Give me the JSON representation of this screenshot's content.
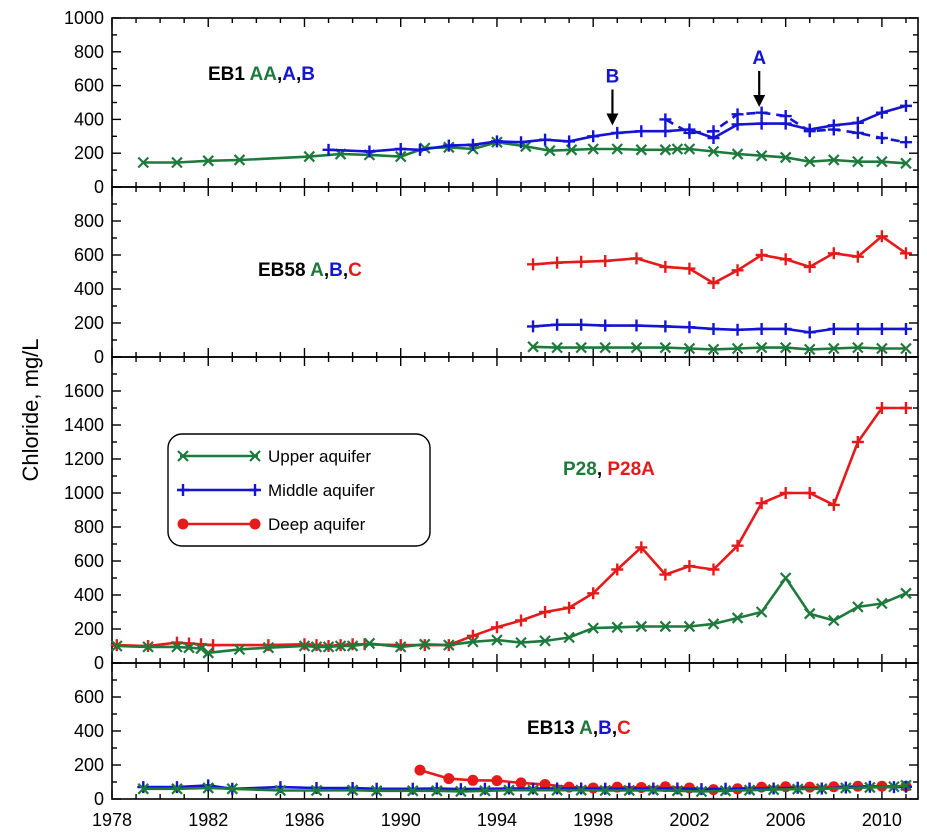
{
  "chart_data": {
    "type": "line",
    "ylabel": "Chloride, mg/L",
    "x_ticks": [
      1978,
      1982,
      1986,
      1990,
      1994,
      1998,
      2002,
      2006,
      2010
    ],
    "xlim": [
      1978,
      2011.5
    ],
    "colors": {
      "upper": "#1e7a3c",
      "middle": "#1414d2",
      "deep": "#e51a1a",
      "label": "#000000"
    },
    "legend": {
      "placement": "middle-left of third panel",
      "entries": [
        {
          "key": "upper",
          "label": "Upper aquifer",
          "marker": "x"
        },
        {
          "key": "middle",
          "label": "Middle aquifer",
          "marker": "plus"
        },
        {
          "key": "deep",
          "label": "Deep aquifer",
          "marker": "dot"
        }
      ]
    },
    "panels": [
      {
        "id": "EB1",
        "ylim": [
          0,
          1000
        ],
        "yticks": [
          0,
          200,
          400,
          600,
          800,
          1000
        ],
        "label_parts": [
          {
            "text": "EB1 ",
            "color": "label"
          },
          {
            "text": "AA",
            "color": "upper"
          },
          {
            "text": ",",
            "color": "label"
          },
          {
            "text": "A",
            "color": "middle"
          },
          {
            "text": ",",
            "color": "label"
          },
          {
            "text": "B",
            "color": "middle"
          }
        ],
        "annotations": [
          {
            "text": "B",
            "x": 1998.8,
            "y": 340,
            "color": "middle"
          },
          {
            "text": "A",
            "x": 2004.9,
            "y": 450,
            "color": "middle"
          }
        ],
        "series": [
          {
            "key": "upper",
            "marker": "x",
            "dashed": false,
            "x": [
              1979.3,
              1980.7,
              1982,
              1983.3,
              1986.2,
              1987.5,
              1988.7,
              1990,
              1991,
              1992,
              1993,
              1994,
              1995.2,
              1996.2,
              1997.1,
              1998,
              1999,
              2000,
              2001,
              2001.5,
              2002,
              2003,
              2004,
              2005,
              2006,
              2007,
              2008,
              2009,
              2010,
              2011
            ],
            "y": [
              145,
              145,
              155,
              160,
              180,
              195,
              190,
              180,
              230,
              235,
              225,
              265,
              240,
              215,
              220,
              225,
              225,
              220,
              220,
              225,
              225,
              210,
              195,
              185,
              175,
              150,
              160,
              150,
              150,
              140
            ]
          },
          {
            "key": "middle",
            "marker": "plus",
            "dashed": false,
            "x": [
              1987,
              1988.7,
              1990,
              1990.8,
              1992,
              1993,
              1994,
              1995,
              1996,
              1997,
              1998,
              1999,
              2000,
              2001,
              2002,
              2003,
              2004,
              2005,
              2006,
              2007,
              2008,
              2009,
              2010,
              2011
            ],
            "y": [
              220,
              210,
              225,
              220,
              245,
              250,
              270,
              265,
              280,
              270,
              300,
              320,
              330,
              330,
              340,
              290,
              370,
              375,
              375,
              340,
              365,
              380,
              440,
              480
            ]
          },
          {
            "key": "middle",
            "marker": "plus",
            "dashed": true,
            "x": [
              2001,
              2002,
              2003,
              2004,
              2005,
              2006,
              2007,
              2008,
              2009,
              2010,
              2011
            ],
            "y": [
              400,
              320,
              330,
              430,
              440,
              420,
              330,
              340,
              320,
              290,
              265
            ]
          }
        ]
      },
      {
        "id": "EB58",
        "ylim": [
          0,
          1000
        ],
        "yticks": [
          0,
          200,
          400,
          600,
          800
        ],
        "label_parts": [
          {
            "text": "EB58 ",
            "color": "label"
          },
          {
            "text": "A",
            "color": "upper"
          },
          {
            "text": ",",
            "color": "label"
          },
          {
            "text": "B",
            "color": "middle"
          },
          {
            "text": ",",
            "color": "label"
          },
          {
            "text": "C",
            "color": "deep"
          }
        ],
        "series": [
          {
            "key": "deep",
            "marker": "plus",
            "dashed": false,
            "x": [
              1995.5,
              1996.5,
              1997.5,
              1998.5,
              1999.8,
              2001,
              2002,
              2003,
              2004,
              2005,
              2006,
              2007,
              2008,
              2009,
              2010,
              2011
            ],
            "y": [
              545,
              555,
              560,
              565,
              580,
              530,
              520,
              435,
              510,
              600,
              575,
              530,
              610,
              590,
              710,
              610
            ]
          },
          {
            "key": "middle",
            "marker": "plus",
            "dashed": false,
            "x": [
              1995.5,
              1996.5,
              1997.5,
              1998.5,
              1999.8,
              2001,
              2002,
              2003,
              2004,
              2005,
              2006,
              2007,
              2008,
              2009,
              2010,
              2011
            ],
            "y": [
              180,
              190,
              190,
              185,
              185,
              180,
              175,
              165,
              160,
              165,
              165,
              145,
              165,
              165,
              165,
              165
            ]
          },
          {
            "key": "upper",
            "marker": "x",
            "dashed": false,
            "x": [
              1995.5,
              1996.5,
              1997.5,
              1998.5,
              1999.8,
              2001,
              2002,
              2003,
              2004,
              2005,
              2006,
              2007,
              2008,
              2009,
              2010,
              2011
            ],
            "y": [
              60,
              55,
              55,
              55,
              55,
              55,
              50,
              45,
              50,
              55,
              55,
              45,
              50,
              55,
              50,
              50
            ]
          }
        ]
      },
      {
        "id": "P28",
        "ylim": [
          0,
          1800
        ],
        "yticks": [
          0,
          200,
          400,
          600,
          800,
          1000,
          1200,
          1400,
          1600
        ],
        "label_parts": [
          {
            "text": "P28",
            "color": "upper"
          },
          {
            "text": ", ",
            "color": "label"
          },
          {
            "text": "P28A",
            "color": "deep"
          }
        ],
        "series": [
          {
            "key": "deep",
            "marker": "plus",
            "dashed": false,
            "x": [
              1978.2,
              1979.5,
              1980.7,
              1981.2,
              1981.7,
              1982.2,
              1984.5,
              1986,
              1986.5,
              1987,
              1987.5,
              1988,
              1988.5,
              1990,
              1991,
              1992,
              1993,
              1994,
              1995,
              1996,
              1997,
              1998,
              1999,
              2000,
              2001,
              2002,
              2003,
              2004,
              2005,
              2006,
              2007,
              2008,
              2009,
              2010,
              2011
            ],
            "y": [
              105,
              100,
              120,
              115,
              110,
              105,
              105,
              110,
              105,
              100,
              105,
              110,
              110,
              105,
              105,
              105,
              160,
              210,
              250,
              300,
              325,
              410,
              550,
              680,
              520,
              570,
              550,
              690,
              940,
              1000,
              1000,
              930,
              1300,
              1500,
              1500
            ]
          },
          {
            "key": "upper",
            "marker": "x",
            "dashed": false,
            "x": [
              1978.2,
              1979.5,
              1980.7,
              1981.2,
              1981.7,
              1982,
              1983.3,
              1984.5,
              1986,
              1986.5,
              1987,
              1987.5,
              1988,
              1988.7,
              1990,
              1991,
              1992,
              1993,
              1994,
              1995,
              1996,
              1997,
              1998,
              1999,
              2000,
              2001,
              2002,
              2003,
              2004,
              2005,
              2006,
              2007,
              2008,
              2009,
              2010,
              2011
            ],
            "y": [
              100,
              95,
              95,
              90,
              85,
              60,
              80,
              90,
              100,
              95,
              95,
              100,
              100,
              115,
              95,
              110,
              105,
              125,
              135,
              120,
              130,
              150,
              205,
              210,
              215,
              215,
              215,
              230,
              265,
              300,
              500,
              290,
              250,
              330,
              350,
              410
            ]
          }
        ]
      },
      {
        "id": "EB13",
        "ylim": [
          0,
          800
        ],
        "yticks": [
          0,
          200,
          400,
          600
        ],
        "label_parts": [
          {
            "text": "EB13 ",
            "color": "label"
          },
          {
            "text": "A",
            "color": "upper"
          },
          {
            "text": ",",
            "color": "label"
          },
          {
            "text": "B",
            "color": "middle"
          },
          {
            "text": ",",
            "color": "label"
          },
          {
            "text": "C",
            "color": "deep"
          }
        ],
        "series": [
          {
            "key": "deep",
            "marker": "dot",
            "dashed": false,
            "x": [
              1990.8,
              1992,
              1993,
              1994,
              1995,
              1996,
              1997,
              1998,
              1999,
              2000,
              2001,
              2002,
              2003,
              2004,
              2005,
              2006,
              2007,
              2008,
              2009,
              2010,
              2011
            ],
            "y": [
              170,
              120,
              110,
              108,
              95,
              85,
              70,
              65,
              70,
              68,
              72,
              65,
              55,
              60,
              70,
              72,
              70,
              72,
              75,
              75,
              75
            ]
          },
          {
            "key": "middle",
            "marker": "plus",
            "dashed": false,
            "x": [
              1979.3,
              1980.7,
              1982,
              1983,
              1985,
              1986.5,
              1988,
              1989,
              1990.5,
              1991.5,
              1992.5,
              1993.5,
              1994.5,
              1995.5,
              1996.5,
              1997.5,
              1998.5,
              1999.5,
              2000.5,
              2001.5,
              2002.5,
              2003.5,
              2004.5,
              2005.5,
              2006.5,
              2007.5,
              2008.5,
              2009.5,
              2010.5,
              2011
            ],
            "y": [
              70,
              70,
              80,
              60,
              70,
              65,
              65,
              60,
              60,
              62,
              58,
              60,
              62,
              62,
              62,
              62,
              60,
              60,
              62,
              62,
              58,
              60,
              62,
              62,
              66,
              62,
              68,
              72,
              70,
              72
            ]
          },
          {
            "key": "upper",
            "marker": "x",
            "dashed": false,
            "x": [
              1979.3,
              1980.7,
              1982,
              1983,
              1985,
              1986.5,
              1988,
              1989,
              1990.5,
              1991.5,
              1992.5,
              1993.5,
              1994.5,
              1995.5,
              1996.5,
              1997.5,
              1998.5,
              1999.5,
              2000.5,
              2001.5,
              2002.5,
              2003.5,
              2004.5,
              2005.5,
              2006.5,
              2007.5,
              2008.5,
              2009.5,
              2010.5,
              2011
            ],
            "y": [
              60,
              60,
              65,
              60,
              50,
              50,
              52,
              48,
              48,
              48,
              45,
              48,
              52,
              52,
              52,
              52,
              50,
              50,
              52,
              48,
              44,
              48,
              52,
              55,
              58,
              60,
              65,
              68,
              72,
              80
            ]
          }
        ]
      }
    ]
  }
}
